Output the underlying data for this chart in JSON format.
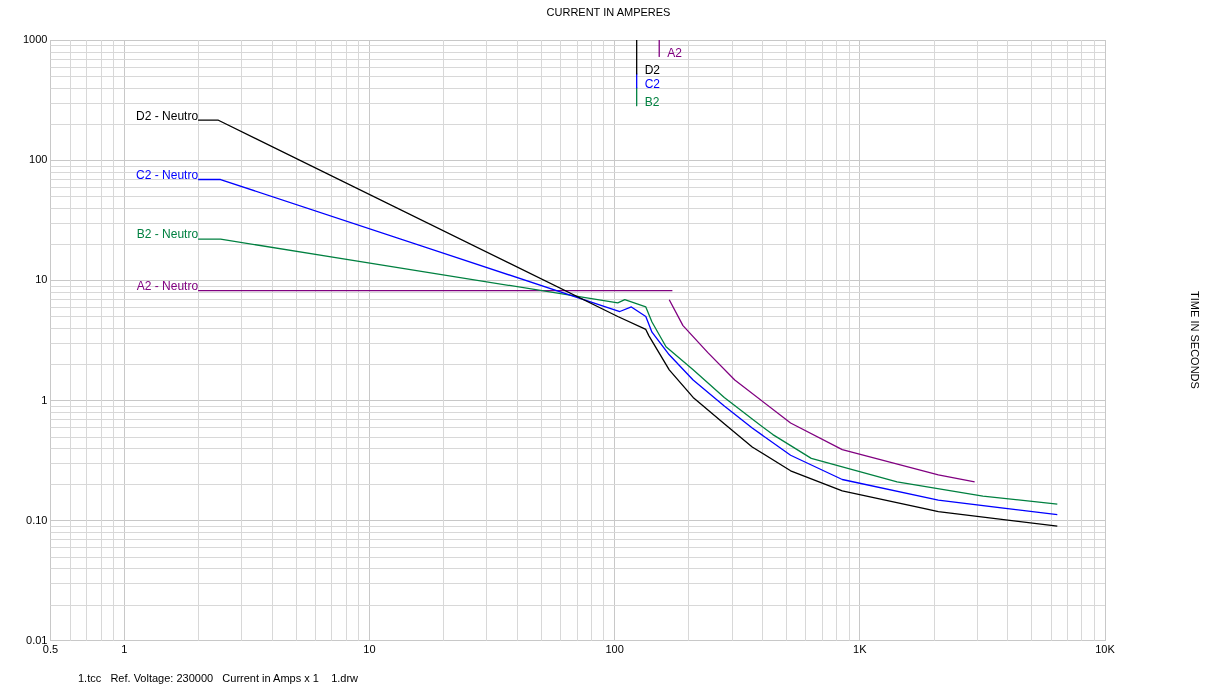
{
  "chart_data": {
    "type": "line",
    "xlabel": "CURRENT IN AMPERES",
    "annotations": [
      "TIME IN SECONDS",
      "1.tcc   Ref. Voltage: 230000   Current in Amps x 1    1.drw"
    ],
    "log": "xy",
    "grid": true,
    "legend": false,
    "marker": "none",
    "line_style": "solid",
    "xlim": [
      0.5,
      10000
    ],
    "ylim": [
      0.01,
      1000
    ],
    "xticks": [
      0.5,
      1,
      10,
      100,
      {
        "value": 1000,
        "label": "1K"
      },
      {
        "value": 10000,
        "label": "10K"
      }
    ],
    "yticks": [
      0.01,
      {
        "value": 0.1,
        "label": "0.10"
      },
      1,
      10,
      100,
      1000
    ],
    "series": [
      {
        "name": "D2 - Neutro",
        "color": "#000000",
        "x": [
          2,
          2.42,
          103,
          134,
          138,
          167,
          209,
          280,
          364,
          522,
          848,
          2090,
          6390
        ],
        "values": [
          215,
          215,
          5.0,
          3.9,
          3.45,
          1.8,
          1.06,
          0.64,
          0.41,
          0.26,
          0.177,
          0.119,
          0.09
        ]
      },
      {
        "name": "C2 - Neutro",
        "color": "#0000ff",
        "x": [
          2,
          2.47,
          105,
          117,
          134,
          142,
          167,
          209,
          280,
          364,
          522,
          848,
          2090,
          6390
        ],
        "values": [
          69,
          69,
          5.5,
          6.0,
          5.0,
          3.7,
          2.4,
          1.48,
          0.9,
          0.59,
          0.35,
          0.22,
          0.148,
          0.112
        ]
      },
      {
        "name": "B2 - Neutro",
        "color": "#008040",
        "x": [
          2,
          2.47,
          103,
          110,
          134,
          142,
          162,
          209,
          280,
          364,
          442,
          634,
          1419,
          3177,
          6390
        ],
        "values": [
          22,
          22,
          6.5,
          6.9,
          6.0,
          4.5,
          2.8,
          1.8,
          1.06,
          0.7,
          0.52,
          0.33,
          0.21,
          0.16,
          0.137
        ]
      },
      {
        "name": "A2 - Neutro",
        "color": "#800080",
        "x": [
          2,
          172,
          170,
          167,
          190,
          240,
          309,
          522,
          848,
          2090,
          2940
        ],
        "values": [
          8.2,
          8.2,
          null,
          6.9,
          4.2,
          2.5,
          1.48,
          0.65,
          0.39,
          0.24,
          0.21
        ]
      },
      {
        "name": "D2",
        "color": "#000000",
        "x": [
          123,
          123
        ],
        "values": [
          1000,
          522
        ]
      },
      {
        "name": "C2",
        "color": "#0000ff",
        "x": [
          123,
          123
        ],
        "values": [
          522,
          400
        ]
      },
      {
        "name": "B2",
        "color": "#008040",
        "x": [
          123,
          123
        ],
        "values": [
          400,
          284
        ]
      },
      {
        "name": "A2",
        "color": "#800080",
        "x": [
          152,
          152
        ],
        "values": [
          1000,
          730
        ]
      }
    ]
  }
}
